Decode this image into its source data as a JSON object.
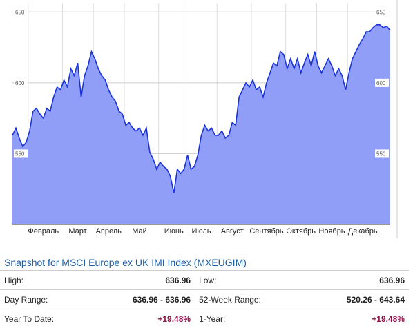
{
  "chart_data": {
    "type": "area",
    "categories": [
      null,
      null,
      null,
      null,
      null,
      null,
      null,
      null,
      null,
      "Февраль",
      null,
      null,
      null,
      null,
      null,
      null,
      null,
      null,
      null,
      "Март",
      null,
      null,
      null,
      null,
      null,
      null,
      null,
      null,
      "Апрель",
      null,
      null,
      null,
      null,
      null,
      null,
      null,
      null,
      "Май",
      null,
      null,
      null,
      null,
      null,
      null,
      null,
      null,
      null,
      "Июнь",
      null,
      null,
      null,
      null,
      null,
      null,
      null,
      "Июль",
      null,
      null,
      null,
      null,
      null,
      null,
      null,
      null,
      "Август",
      null,
      null,
      null,
      null,
      null,
      null,
      null,
      null,
      null,
      "Сентябрь",
      null,
      null,
      null,
      null,
      null,
      null,
      null,
      null,
      null,
      "Октябрь",
      null,
      null,
      null,
      null,
      null,
      null,
      null,
      null,
      "Ноябрь",
      null,
      null,
      null,
      null,
      null,
      null,
      null,
      null,
      "Декабрь",
      null,
      null,
      null,
      null,
      null,
      null,
      null,
      null
    ],
    "values": [
      563,
      568,
      561,
      555,
      558,
      566,
      580,
      582,
      578,
      575,
      582,
      580,
      590,
      597,
      595,
      602,
      597,
      610,
      605,
      614,
      590,
      605,
      612,
      622,
      617,
      610,
      605,
      602,
      595,
      590,
      587,
      580,
      578,
      570,
      572,
      568,
      566,
      568,
      563,
      568,
      551,
      546,
      539,
      544,
      541,
      539,
      534,
      522,
      539,
      536,
      539,
      549,
      539,
      541,
      549,
      563,
      570,
      566,
      568,
      563,
      563,
      566,
      561,
      563,
      572,
      570,
      590,
      595,
      600,
      597,
      602,
      595,
      597,
      590,
      600,
      607,
      614,
      612,
      622,
      620,
      610,
      617,
      610,
      617,
      607,
      614,
      620,
      612,
      622,
      612,
      607,
      612,
      617,
      612,
      605,
      610,
      605,
      595,
      607,
      617,
      622,
      627,
      631,
      636,
      636,
      639,
      641,
      641,
      639,
      640,
      637
    ],
    "color": "#1a33d9",
    "ylim": [
      500,
      656
    ],
    "yticks": [
      550,
      600,
      650
    ],
    "grid": true
  },
  "snapshot": {
    "title": "Snapshot for MSCI Europe ex UK IMI Index (MXEUGIM)",
    "rows": [
      [
        "High:",
        "636.96",
        "Low:",
        "636.96"
      ],
      [
        "Day Range:",
        "636.96 - 636.96",
        "52-Week Range:",
        "520.26 - 643.64"
      ],
      [
        "Year To Date:",
        "+19.48%",
        "1-Year:",
        "+19.48%"
      ]
    ]
  }
}
